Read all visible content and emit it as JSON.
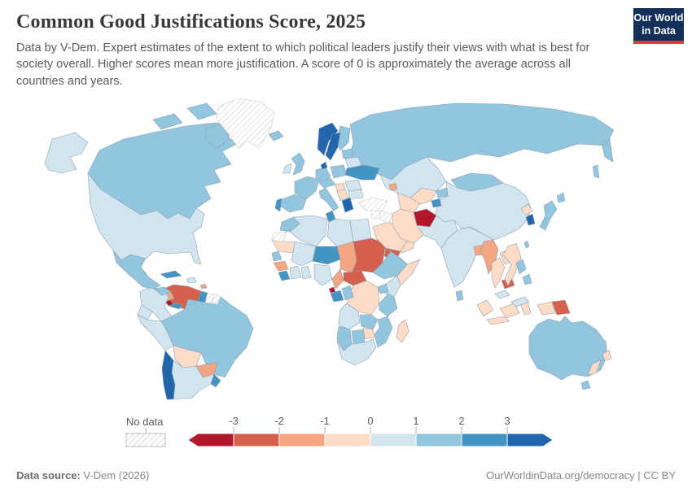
{
  "header": {
    "title": "Common Good Justifications Score, 2025",
    "logo": {
      "line1": "Our World",
      "line2": "in Data"
    }
  },
  "subtitle": "Data by V-Dem. Expert estimates of the extent to which political leaders justify their views with what is best for society overall. Higher scores mean more justification. A score of 0 is approximately the average across all countries and years.",
  "legend": {
    "no_data_label": "No data",
    "ticks": [
      "-3",
      "-2",
      "-1",
      "0",
      "1",
      "2",
      "3"
    ],
    "colors": [
      "#b2182b",
      "#d6604d",
      "#f4a582",
      "#fddbc7",
      "#d1e5f0",
      "#92c5de",
      "#4393c3",
      "#2166ac"
    ]
  },
  "footer": {
    "source_label": "Data source:",
    "source_value": " V-Dem (2026)",
    "right": "OurWorldinData.org/democracy | CC BY"
  },
  "chart_data": {
    "type": "choropleth",
    "title": "Common Good Justifications Score, 2025",
    "legend_bins": [
      "< -3",
      "-3 to -2",
      "-2 to -1",
      "-1 to 0",
      "0 to 1",
      "1 to 2",
      "2 to 3",
      "> 3",
      "No data"
    ],
    "countries": [
      {
        "name": "Afghanistan",
        "value": "< -3"
      },
      {
        "name": "Costa Rica",
        "value": "< -3"
      },
      {
        "name": "Equatorial Guinea",
        "value": "< -3"
      },
      {
        "name": "Venezuela",
        "value": "-3 to -2"
      },
      {
        "name": "Sudan",
        "value": "-3 to -2"
      },
      {
        "name": "Central African Republic",
        "value": "-3 to -2"
      },
      {
        "name": "Yemen",
        "value": "-3 to -2"
      },
      {
        "name": "Cambodia",
        "value": "-3 to -2"
      },
      {
        "name": "Papua New Guinea",
        "value": "-3 to -2"
      },
      {
        "name": "Eritrea",
        "value": "-3 to -2"
      },
      {
        "name": "Nicaragua",
        "value": "-2 to -1"
      },
      {
        "name": "Paraguay",
        "value": "-2 to -1"
      },
      {
        "name": "Chad",
        "value": "-2 to -1"
      },
      {
        "name": "Guinea",
        "value": "-2 to -1"
      },
      {
        "name": "Cameroon",
        "value": "-2 to -1"
      },
      {
        "name": "Azerbaijan",
        "value": "-2 to -1"
      },
      {
        "name": "Bangladesh",
        "value": "-2 to -1"
      },
      {
        "name": "Myanmar",
        "value": "-2 to -1"
      },
      {
        "name": "Trinidad and Tobago",
        "value": "-2 to -1"
      },
      {
        "name": "Bolivia",
        "value": "-1 to 0"
      },
      {
        "name": "Mauritania",
        "value": "-1 to 0"
      },
      {
        "name": "Democratic Republic of Congo",
        "value": "-1 to 0"
      },
      {
        "name": "Somalia",
        "value": "-1 to 0"
      },
      {
        "name": "Zimbabwe",
        "value": "-1 to 0"
      },
      {
        "name": "Madagascar",
        "value": "-1 to 0"
      },
      {
        "name": "Saudi Arabia",
        "value": "-1 to 0"
      },
      {
        "name": "Oman",
        "value": "-1 to 0"
      },
      {
        "name": "Iran",
        "value": "-1 to 0"
      },
      {
        "name": "Uzbekistan",
        "value": "-1 to 0"
      },
      {
        "name": "Turkmenistan",
        "value": "-1 to 0"
      },
      {
        "name": "Thailand",
        "value": "-1 to 0"
      },
      {
        "name": "Laos",
        "value": "-1 to 0"
      },
      {
        "name": "Vietnam",
        "value": "-1 to 0"
      },
      {
        "name": "North Korea",
        "value": "-1 to 0"
      },
      {
        "name": "Indonesia",
        "value": "-1 to 0"
      },
      {
        "name": "New Zealand",
        "value": "-1 to 0"
      },
      {
        "name": "Hungary",
        "value": "-1 to 0"
      },
      {
        "name": "Serbia",
        "value": "-1 to 0"
      },
      {
        "name": "United States",
        "value": "0 to 1"
      },
      {
        "name": "Argentina",
        "value": "0 to 1"
      },
      {
        "name": "Colombia",
        "value": "0 to 1"
      },
      {
        "name": "Ecuador",
        "value": "0 to 1"
      },
      {
        "name": "Peru",
        "value": "0 to 1"
      },
      {
        "name": "Ireland",
        "value": "0 to 1"
      },
      {
        "name": "Belarus",
        "value": "0 to 1"
      },
      {
        "name": "Romania",
        "value": "0 to 1"
      },
      {
        "name": "Bulgaria",
        "value": "0 to 1"
      },
      {
        "name": "Kazakhstan",
        "value": "0 to 1"
      },
      {
        "name": "China",
        "value": "0 to 1"
      },
      {
        "name": "India",
        "value": "0 to 1"
      },
      {
        "name": "Pakistan",
        "value": "0 to 1"
      },
      {
        "name": "Algeria",
        "value": "0 to 1"
      },
      {
        "name": "Libya",
        "value": "0 to 1"
      },
      {
        "name": "Egypt",
        "value": "0 to 1"
      },
      {
        "name": "Mali",
        "value": "0 to 1"
      },
      {
        "name": "Ivory Coast",
        "value": "0 to 1"
      },
      {
        "name": "Ghana",
        "value": "0 to 1"
      },
      {
        "name": "Nigeria",
        "value": "0 to 1"
      },
      {
        "name": "Kenya",
        "value": "0 to 1"
      },
      {
        "name": "Angola",
        "value": "0 to 1"
      },
      {
        "name": "South Africa",
        "value": "0 to 1"
      },
      {
        "name": "Malaysia",
        "value": "0 to 1"
      },
      {
        "name": "Dominican Republic",
        "value": "0 to 1"
      },
      {
        "name": "Canada",
        "value": "1 to 2"
      },
      {
        "name": "Mexico",
        "value": "1 to 2"
      },
      {
        "name": "Guatemala",
        "value": "1 to 2"
      },
      {
        "name": "Brazil",
        "value": "1 to 2"
      },
      {
        "name": "Russia",
        "value": "1 to 2"
      },
      {
        "name": "United Kingdom",
        "value": "1 to 2"
      },
      {
        "name": "France",
        "value": "1 to 2"
      },
      {
        "name": "Spain",
        "value": "1 to 2"
      },
      {
        "name": "Germany",
        "value": "1 to 2"
      },
      {
        "name": "Poland",
        "value": "1 to 2"
      },
      {
        "name": "Czechia",
        "value": "1 to 2"
      },
      {
        "name": "Italy",
        "value": "1 to 2"
      },
      {
        "name": "Finland",
        "value": "1 to 2"
      },
      {
        "name": "Iceland",
        "value": "1 to 2"
      },
      {
        "name": "Lithuania",
        "value": "1 to 2"
      },
      {
        "name": "Kyrgyzstan",
        "value": "1 to 2"
      },
      {
        "name": "Mongolia",
        "value": "1 to 2"
      },
      {
        "name": "Japan",
        "value": "1 to 2"
      },
      {
        "name": "Taiwan",
        "value": "1 to 2"
      },
      {
        "name": "Philippines",
        "value": "1 to 2"
      },
      {
        "name": "Sri Lanka",
        "value": "1 to 2"
      },
      {
        "name": "Australia",
        "value": "1 to 2"
      },
      {
        "name": "Senegal",
        "value": "1 to 2"
      },
      {
        "name": "Morocco",
        "value": "1 to 2"
      },
      {
        "name": "Ethiopia",
        "value": "1 to 2"
      },
      {
        "name": "Uganda",
        "value": "1 to 2"
      },
      {
        "name": "Tanzania",
        "value": "1 to 2"
      },
      {
        "name": "Zambia",
        "value": "1 to 2"
      },
      {
        "name": "Congo",
        "value": "1 to 2"
      },
      {
        "name": "Namibia",
        "value": "1 to 2"
      },
      {
        "name": "Botswana",
        "value": "1 to 2"
      },
      {
        "name": "Mozambique",
        "value": "1 to 2"
      },
      {
        "name": "Cuba",
        "value": "2 to 3"
      },
      {
        "name": "Panama",
        "value": "2 to 3"
      },
      {
        "name": "Guyana",
        "value": "2 to 3"
      },
      {
        "name": "Uruguay",
        "value": "2 to 3"
      },
      {
        "name": "Portugal",
        "value": "2 to 3"
      },
      {
        "name": "Ukraine",
        "value": "2 to 3"
      },
      {
        "name": "Tunisia",
        "value": "2 to 3"
      },
      {
        "name": "Niger",
        "value": "2 to 3"
      },
      {
        "name": "Gabon",
        "value": "2 to 3"
      },
      {
        "name": "Sierra Leone",
        "value": "2 to 3"
      },
      {
        "name": "Tajikistan",
        "value": "2 to 3"
      },
      {
        "name": "Norway",
        "value": "> 3"
      },
      {
        "name": "Sweden",
        "value": "> 3"
      },
      {
        "name": "Denmark",
        "value": "> 3"
      },
      {
        "name": "Greece",
        "value": "> 3"
      },
      {
        "name": "Chile",
        "value": "> 3"
      },
      {
        "name": "South Korea",
        "value": "> 3"
      },
      {
        "name": "Greenland",
        "value": "No data"
      },
      {
        "name": "Western Sahara",
        "value": "No data"
      },
      {
        "name": "Turkey",
        "value": "No data"
      },
      {
        "name": "Syria",
        "value": "No data"
      },
      {
        "name": "Iraq",
        "value": "No data"
      },
      {
        "name": "Suriname",
        "value": "No data"
      },
      {
        "name": "French Guiana",
        "value": "No data"
      }
    ]
  }
}
